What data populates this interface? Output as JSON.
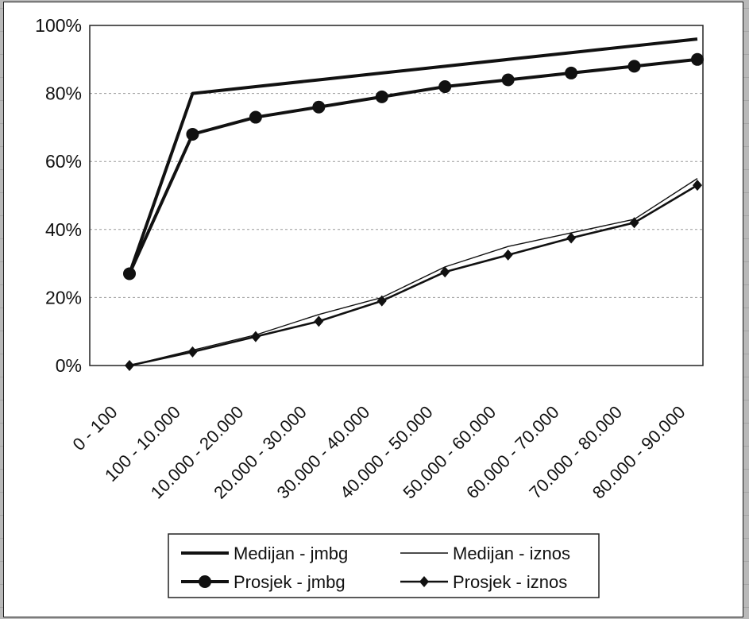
{
  "chart_data": {
    "type": "line",
    "categories": [
      "0 - 100",
      "100 - 10.000",
      "10.000 - 20.000",
      "20.000 - 30.000",
      "30.000 - 40.000",
      "40.000 - 50.000",
      "50.000 - 60.000",
      "60.000 - 70.000",
      "70.000 - 80.000",
      "80.000 - 90.000"
    ],
    "series": [
      {
        "name": "Medijan - jmbg",
        "marker": "none",
        "stroke": "thick",
        "values": [
          0.27,
          0.8,
          0.82,
          0.84,
          0.86,
          0.88,
          0.9,
          0.92,
          0.94,
          0.96
        ]
      },
      {
        "name": "Prosjek - jmbg",
        "marker": "circle",
        "stroke": "thick",
        "values": [
          0.27,
          0.68,
          0.73,
          0.76,
          0.79,
          0.82,
          0.84,
          0.86,
          0.88,
          0.9
        ]
      },
      {
        "name": "Medijan - iznos",
        "marker": "none",
        "stroke": "thin",
        "values": [
          0.0,
          0.045,
          0.09,
          0.15,
          0.2,
          0.29,
          0.35,
          0.39,
          0.43,
          0.55
        ]
      },
      {
        "name": "Prosjek - iznos",
        "marker": "diamond",
        "stroke": "medium",
        "values": [
          0.0,
          0.04,
          0.085,
          0.13,
          0.19,
          0.275,
          0.325,
          0.375,
          0.42,
          0.53
        ]
      }
    ],
    "y_ticks": [
      "0%",
      "20%",
      "40%",
      "60%",
      "80%",
      "100%"
    ],
    "ylim": [
      0,
      1.0
    ],
    "grid": "horizontal-dashed",
    "legend_position": "bottom-center",
    "colors": {
      "line": "#111111",
      "grid": "#9a9a9a",
      "frame": "#222222"
    }
  }
}
